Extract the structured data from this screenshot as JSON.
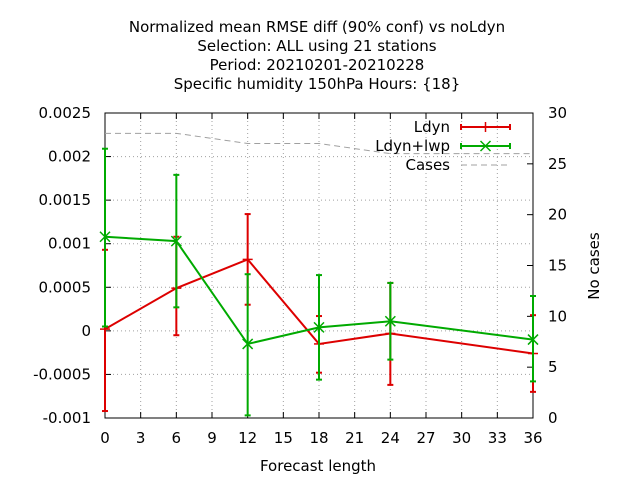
{
  "chart_data": {
    "type": "line",
    "title_lines": [
      "Normalized mean RMSE diff (90% conf) vs noLdyn",
      "Selection: ALL using    21 stations",
      "Period: 20210201-20210228",
      "Specific humidity 150hPa   Hours: {18}"
    ],
    "xlabel": "Forecast length",
    "ylabel": "",
    "y2label": "No cases",
    "xlim": [
      0,
      36
    ],
    "ylim": [
      -0.001,
      0.0025
    ],
    "y2lim": [
      0,
      30
    ],
    "x_ticks": [
      "0",
      "3",
      "6",
      "9",
      "12",
      "15",
      "18",
      "21",
      "24",
      "27",
      "30",
      "33",
      "36"
    ],
    "y_ticks": [
      "-0.001",
      "-0.0005",
      "0",
      "0.0005",
      "0.001",
      "0.0015",
      "0.002",
      "0.0025"
    ],
    "y2_ticks": [
      "0",
      "5",
      "10",
      "15",
      "20",
      "25",
      "30"
    ],
    "grid": true,
    "legend_position": "top-right",
    "series": [
      {
        "name": "Ldyn",
        "color": "#dd0000",
        "marker": "plus",
        "axis": "y1",
        "x": [
          0,
          6,
          12,
          18,
          24,
          36
        ],
        "y": [
          2e-05,
          0.00049,
          0.00082,
          -0.00015,
          -3e-05,
          -0.00026
        ],
        "err_low": [
          -0.00092,
          -5e-05,
          0.0003,
          -0.00048,
          -0.00062,
          -0.0007
        ],
        "err_high": [
          0.00093,
          0.00108,
          0.00134,
          0.00017,
          0.00055,
          0.00018
        ]
      },
      {
        "name": "Ldyn+lwp",
        "color": "#00aa00",
        "marker": "cross",
        "axis": "y1",
        "x": [
          0,
          6,
          12,
          18,
          24,
          36
        ],
        "y": [
          0.00108,
          0.00103,
          -0.00015,
          4e-05,
          0.00011,
          -0.0001
        ],
        "err_low": [
          5e-05,
          0.00027,
          -0.00097,
          -0.00056,
          -0.00033,
          -0.00058
        ],
        "err_high": [
          0.00209,
          0.00179,
          0.00065,
          0.00064,
          0.00055,
          0.0004
        ]
      },
      {
        "name": "Cases",
        "color": "#a0a0a0",
        "marker": "none",
        "dashed": true,
        "axis": "y2",
        "x": [
          0,
          6,
          12,
          18,
          24,
          36
        ],
        "y": [
          28,
          28,
          27,
          27,
          26,
          26
        ]
      }
    ]
  }
}
